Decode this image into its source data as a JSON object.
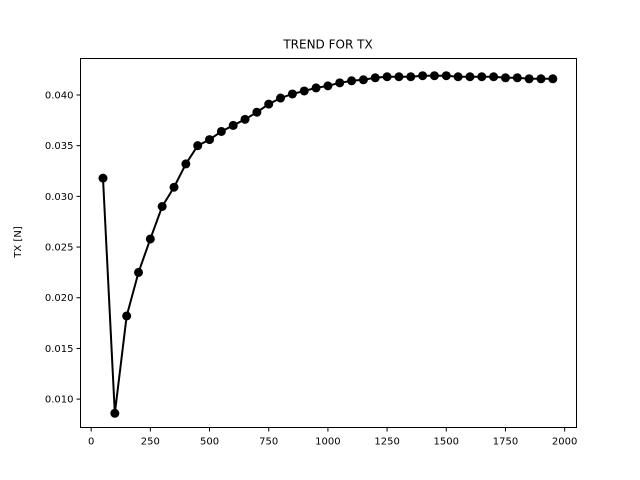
{
  "chart_data": {
    "type": "line",
    "title": "TREND FOR TX",
    "xlabel": "",
    "ylabel": "TX [N]",
    "xlim": [
      -45,
      2050
    ],
    "ylim": [
      0.0072,
      0.0436
    ],
    "xticks": [
      0,
      250,
      500,
      750,
      1000,
      1250,
      1500,
      1750,
      2000
    ],
    "xtick_labels": [
      "0",
      "250",
      "500",
      "750",
      "1000",
      "1250",
      "1500",
      "1750",
      "2000"
    ],
    "yticks": [
      0.01,
      0.015,
      0.02,
      0.025,
      0.03,
      0.035,
      0.04
    ],
    "ytick_labels": [
      "0.010",
      "0.015",
      "0.020",
      "0.025",
      "0.030",
      "0.035",
      "0.040"
    ],
    "grid": false,
    "series": [
      {
        "color": "#000000",
        "marker": "circle",
        "x": [
          50,
          100,
          150,
          200,
          250,
          300,
          350,
          400,
          450,
          500,
          550,
          600,
          650,
          700,
          750,
          800,
          850,
          900,
          950,
          1000,
          1050,
          1100,
          1150,
          1200,
          1250,
          1300,
          1350,
          1400,
          1450,
          1500,
          1550,
          1600,
          1650,
          1700,
          1750,
          1800,
          1850,
          1900,
          1950
        ],
        "y": [
          0.0318,
          0.0086,
          0.0182,
          0.0225,
          0.0258,
          0.029,
          0.0309,
          0.0332,
          0.035,
          0.0356,
          0.0364,
          0.037,
          0.0376,
          0.0383,
          0.0391,
          0.0397,
          0.0401,
          0.0404,
          0.0407,
          0.0409,
          0.0412,
          0.0414,
          0.0415,
          0.0417,
          0.0418,
          0.0418,
          0.0418,
          0.0419,
          0.0419,
          0.0419,
          0.0418,
          0.0418,
          0.0418,
          0.0418,
          0.0417,
          0.0417,
          0.0416,
          0.0416,
          0.0416
        ]
      }
    ]
  }
}
